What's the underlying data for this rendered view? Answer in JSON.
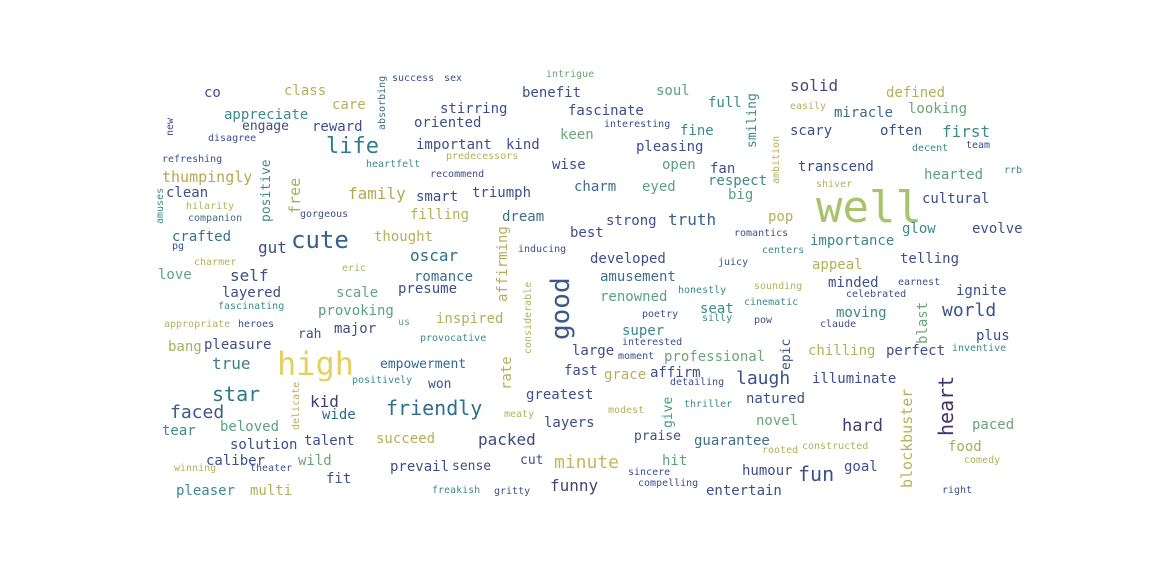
{
  "palette": [
    "#46317e",
    "#3c4f8a",
    "#2e6e8e",
    "#2a788e",
    "#5b9c86",
    "#83a87a",
    "#b5b86a",
    "#d9c95a",
    "#e8d75e"
  ],
  "words": [
    {
      "t": "well",
      "c": "#a8c46a"
    },
    {
      "t": "high",
      "c": "#e3d05e"
    },
    {
      "t": "good",
      "c": "#3a5a8c"
    },
    {
      "t": "cute",
      "c": "#33638d"
    },
    {
      "t": "life",
      "c": "#2f7c8e"
    },
    {
      "t": "friendly",
      "c": "#2e6e8e"
    },
    {
      "t": "star",
      "c": "#2a788e"
    },
    {
      "t": "heart",
      "c": "#47326f"
    },
    {
      "t": "laugh",
      "c": "#3c4f8a"
    },
    {
      "t": "world",
      "c": "#3d5189"
    },
    {
      "t": "fun",
      "c": "#3c4f8a"
    },
    {
      "t": "minute",
      "c": "#c6b65a"
    },
    {
      "t": "funny",
      "c": "#454476"
    },
    {
      "t": "faced",
      "c": "#3c5a89"
    },
    {
      "t": "hard",
      "c": "#453c6f"
    },
    {
      "t": "truth",
      "c": "#34628d"
    },
    {
      "t": "oscar",
      "c": "#2d6f8e"
    },
    {
      "t": "solid",
      "c": "#454a7a"
    },
    {
      "t": "first",
      "c": "#3d8a8a"
    },
    {
      "t": "family",
      "c": "#b4a94e"
    },
    {
      "t": "true",
      "c": "#3d7c8b"
    },
    {
      "t": "packed",
      "c": "#3e4a80"
    },
    {
      "t": "gut",
      "c": "#3b4f86"
    },
    {
      "t": "self",
      "c": "#3a4f84"
    },
    {
      "t": "kid",
      "c": "#423c70"
    },
    {
      "t": "blockbuster",
      "c": "#b6b25a"
    },
    {
      "t": "blast",
      "c": "#6ba57a"
    },
    {
      "t": "free",
      "c": "#9fb15a"
    },
    {
      "t": "positive",
      "c": "#4a8a86"
    },
    {
      "t": "thumpingly",
      "c": "#b6a94e"
    },
    {
      "t": "crafted",
      "c": "#33728c"
    },
    {
      "t": "clean",
      "c": "#3c4f8a"
    },
    {
      "t": "love",
      "c": "#5ea08a"
    },
    {
      "t": "layered",
      "c": "#3c4f8a"
    },
    {
      "t": "provoking",
      "c": "#5aa17d"
    },
    {
      "t": "scale",
      "c": "#64a37f"
    },
    {
      "t": "major",
      "c": "#3c4f8a"
    },
    {
      "t": "rah",
      "c": "#3c4f8a"
    },
    {
      "t": "bang",
      "c": "#a7b05a"
    },
    {
      "t": "pleasure",
      "c": "#3c4f8a"
    },
    {
      "t": "empowerment",
      "c": "#2f6a8e"
    },
    {
      "t": "won",
      "c": "#3c4f8a"
    },
    {
      "t": "wide",
      "c": "#2f6a8e"
    },
    {
      "t": "beloved",
      "c": "#5aa17d"
    },
    {
      "t": "tear",
      "c": "#3c8a8a"
    },
    {
      "t": "solution",
      "c": "#3c4f8a"
    },
    {
      "t": "talent",
      "c": "#3c4f8a"
    },
    {
      "t": "caliber",
      "c": "#3c4f8a"
    },
    {
      "t": "wild",
      "c": "#6ba57a"
    },
    {
      "t": "fit",
      "c": "#3c4f8a"
    },
    {
      "t": "pleaser",
      "c": "#3c8a8a"
    },
    {
      "t": "multi",
      "c": "#b0b25a"
    },
    {
      "t": "succeed",
      "c": "#b0b25a"
    },
    {
      "t": "prevail",
      "c": "#3c4f8a"
    },
    {
      "t": "sense",
      "c": "#3c4f8a"
    },
    {
      "t": "cut",
      "c": "#3c4f8a"
    },
    {
      "t": "hit",
      "c": "#5aa17d"
    },
    {
      "t": "greatest",
      "c": "#3c4f8a"
    },
    {
      "t": "layers",
      "c": "#3c4f8a"
    },
    {
      "t": "praise",
      "c": "#3c4f8a"
    },
    {
      "t": "guarantee",
      "c": "#3c6e8a"
    },
    {
      "t": "humour",
      "c": "#3c4f8a"
    },
    {
      "t": "goal",
      "c": "#3c4f8a"
    },
    {
      "t": "entertain",
      "c": "#3c4f8a"
    },
    {
      "t": "food",
      "c": "#9fb15a"
    },
    {
      "t": "paced",
      "c": "#6ba57a"
    },
    {
      "t": "novel",
      "c": "#6ba57a"
    },
    {
      "t": "natured",
      "c": "#3c4f8a"
    },
    {
      "t": "illuminate",
      "c": "#3c4f8a"
    },
    {
      "t": "give",
      "c": "#4a9a86"
    },
    {
      "t": "grace",
      "c": "#b0b25a"
    },
    {
      "t": "affirm",
      "c": "#3c4f8a"
    },
    {
      "t": "professional",
      "c": "#6ba57a"
    },
    {
      "t": "fast",
      "c": "#3c4f8a"
    },
    {
      "t": "large",
      "c": "#3c4f8a"
    },
    {
      "t": "super",
      "c": "#3c8a8a"
    },
    {
      "t": "rate",
      "c": "#b0b25a"
    },
    {
      "t": "epic",
      "c": "#3c4f8a"
    },
    {
      "t": "chilling",
      "c": "#b0b25a"
    },
    {
      "t": "perfect",
      "c": "#3c4f8a"
    },
    {
      "t": "plus",
      "c": "#3c4f8a"
    },
    {
      "t": "moving",
      "c": "#3c8a8a"
    },
    {
      "t": "minded",
      "c": "#3c4f8a"
    },
    {
      "t": "ignite",
      "c": "#3c4f8a"
    },
    {
      "t": "telling",
      "c": "#3c4f8a"
    },
    {
      "t": "appeal",
      "c": "#b0b25a"
    },
    {
      "t": "importance",
      "c": "#3c8a8a"
    },
    {
      "t": "glow",
      "c": "#3c8a8a"
    },
    {
      "t": "evolve",
      "c": "#3c4f8a"
    },
    {
      "t": "cultural",
      "c": "#3c4f8a"
    },
    {
      "t": "hearted",
      "c": "#5aa17d"
    },
    {
      "t": "transcend",
      "c": "#3c4f8a"
    },
    {
      "t": "scary",
      "c": "#3c4f8a"
    },
    {
      "t": "often",
      "c": "#3c4f8a"
    },
    {
      "t": "looking",
      "c": "#6ba57a"
    },
    {
      "t": "miracle",
      "c": "#3c6e8a"
    },
    {
      "t": "defined",
      "c": "#b0b25a"
    },
    {
      "t": "smiling",
      "c": "#3c8a8a"
    },
    {
      "t": "full",
      "c": "#3c8a8a"
    },
    {
      "t": "fine",
      "c": "#3c8a8a"
    },
    {
      "t": "soul",
      "c": "#5aa17d"
    },
    {
      "t": "benefit",
      "c": "#3c4f8a"
    },
    {
      "t": "fascinate",
      "c": "#3c4f8a"
    },
    {
      "t": "keen",
      "c": "#6ba57a"
    },
    {
      "t": "kind",
      "c": "#3c4f8a"
    },
    {
      "t": "pleasing",
      "c": "#3c4f8a"
    },
    {
      "t": "wise",
      "c": "#3c4f8a"
    },
    {
      "t": "open",
      "c": "#5aa17d"
    },
    {
      "t": "fan",
      "c": "#3c4f8a"
    },
    {
      "t": "respect",
      "c": "#3c8a8a"
    },
    {
      "t": "big",
      "c": "#5aa17d"
    },
    {
      "t": "eyed",
      "c": "#5aa17d"
    },
    {
      "t": "charm",
      "c": "#3c6e8a"
    },
    {
      "t": "triumph",
      "c": "#3c4f8a"
    },
    {
      "t": "stirring",
      "c": "#3c4f8a"
    },
    {
      "t": "important",
      "c": "#3c4f8a"
    },
    {
      "t": "oriented",
      "c": "#3c4f8a"
    },
    {
      "t": "smart",
      "c": "#3c4f8a"
    },
    {
      "t": "filling",
      "c": "#b0b25a"
    },
    {
      "t": "dream",
      "c": "#3c6e8a"
    },
    {
      "t": "strong",
      "c": "#3c4f8a"
    },
    {
      "t": "pop",
      "c": "#b0b25a"
    },
    {
      "t": "best",
      "c": "#3c4f8a"
    },
    {
      "t": "developed",
      "c": "#3c4f8a"
    },
    {
      "t": "amusement",
      "c": "#3c6e8a"
    },
    {
      "t": "renowned",
      "c": "#5aa17d"
    },
    {
      "t": "seat",
      "c": "#3c8a8a"
    },
    {
      "t": "romance",
      "c": "#3c6e8a"
    },
    {
      "t": "presume",
      "c": "#3c4f8a"
    },
    {
      "t": "inspired",
      "c": "#b0b25a"
    },
    {
      "t": "affirming",
      "c": "#b0b25a"
    },
    {
      "t": "thought",
      "c": "#b0b25a"
    },
    {
      "t": "appreciate",
      "c": "#3c8a8a"
    },
    {
      "t": "class",
      "c": "#b0b25a"
    },
    {
      "t": "care",
      "c": "#b0b25a"
    },
    {
      "t": "reward",
      "c": "#3c4f8a"
    },
    {
      "t": "engage",
      "c": "#3c4f8a"
    },
    {
      "t": "co",
      "c": "#3c4f8a"
    },
    {
      "t": "appropriate",
      "c": "#b0b25a"
    },
    {
      "t": "heroes",
      "c": "#3c4f8a"
    },
    {
      "t": "fascinating",
      "c": "#3c8a8a"
    },
    {
      "t": "us",
      "c": "#6ba57a"
    },
    {
      "t": "eric",
      "c": "#b0b25a"
    },
    {
      "t": "charmer",
      "c": "#b0b25a"
    },
    {
      "t": "pg",
      "c": "#3c4f8a"
    },
    {
      "t": "amuses",
      "c": "#3c8a8a"
    },
    {
      "t": "companion",
      "c": "#3c6e8a"
    },
    {
      "t": "gorgeous",
      "c": "#3c4f8a"
    },
    {
      "t": "hilarity",
      "c": "#b0b25a"
    },
    {
      "t": "refreshing",
      "c": "#3c4f8a"
    },
    {
      "t": "disagree",
      "c": "#3c4f8a"
    },
    {
      "t": "new",
      "c": "#3c4f8a"
    },
    {
      "t": "absorbing",
      "c": "#3c6e8a"
    },
    {
      "t": "success",
      "c": "#3c4f8a"
    },
    {
      "t": "sex",
      "c": "#3c4f8a"
    },
    {
      "t": "intrigue",
      "c": "#6ba57a"
    },
    {
      "t": "interesting",
      "c": "#3c4f8a"
    },
    {
      "t": "heartfelt",
      "c": "#3c8a8a"
    },
    {
      "t": "predecessors",
      "c": "#b0b25a"
    },
    {
      "t": "recommend",
      "c": "#3c4f8a"
    },
    {
      "t": "easily",
      "c": "#b0b25a"
    },
    {
      "t": "ambition",
      "c": "#b0b25a"
    },
    {
      "t": "team",
      "c": "#3c4f8a"
    },
    {
      "t": "decent",
      "c": "#3c8a8a"
    },
    {
      "t": "rrb",
      "c": "#3c8a8a"
    },
    {
      "t": "shiver",
      "c": "#b0b25a"
    },
    {
      "t": "romantics",
      "c": "#3c4f8a"
    },
    {
      "t": "centers",
      "c": "#3c8a8a"
    },
    {
      "t": "inducing",
      "c": "#3c4f8a"
    },
    {
      "t": "juicy",
      "c": "#3c4f8a"
    },
    {
      "t": "honestly",
      "c": "#3c8a8a"
    },
    {
      "t": "sounding",
      "c": "#b0b25a"
    },
    {
      "t": "earnest",
      "c": "#3c4f8a"
    },
    {
      "t": "celebrated",
      "c": "#3c4f8a"
    },
    {
      "t": "cinematic",
      "c": "#3c8a8a"
    },
    {
      "t": "silly",
      "c": "#3c8a8a"
    },
    {
      "t": "pow",
      "c": "#3c4f8a"
    },
    {
      "t": "claude",
      "c": "#3c4f8a"
    },
    {
      "t": "poetry",
      "c": "#3c4f8a"
    },
    {
      "t": "considerable",
      "c": "#b0b25a"
    },
    {
      "t": "provocative",
      "c": "#3c8a8a"
    },
    {
      "t": "interested",
      "c": "#3c4f8a"
    },
    {
      "t": "moment",
      "c": "#3c4f8a"
    },
    {
      "t": "inventive",
      "c": "#3c8a8a"
    },
    {
      "t": "positively",
      "c": "#3c8a8a"
    },
    {
      "t": "delicate",
      "c": "#b0b25a"
    },
    {
      "t": "detailing",
      "c": "#3c4f8a"
    },
    {
      "t": "thriller",
      "c": "#3c8a8a"
    },
    {
      "t": "meaty",
      "c": "#b0b25a"
    },
    {
      "t": "modest",
      "c": "#b0b25a"
    },
    {
      "t": "rooted",
      "c": "#b0b25a"
    },
    {
      "t": "constructed",
      "c": "#b0b25a"
    },
    {
      "t": "sincere",
      "c": "#3c4f8a"
    },
    {
      "t": "compelling",
      "c": "#3c4f8a"
    },
    {
      "t": "comedy",
      "c": "#b0b25a"
    },
    {
      "t": "winning",
      "c": "#b0b25a"
    },
    {
      "t": "theater",
      "c": "#3c4f8a"
    },
    {
      "t": "freakish",
      "c": "#3c8a8a"
    },
    {
      "t": "gritty",
      "c": "#3c4f8a"
    },
    {
      "t": "right",
      "c": "#3c4f8a"
    }
  ]
}
